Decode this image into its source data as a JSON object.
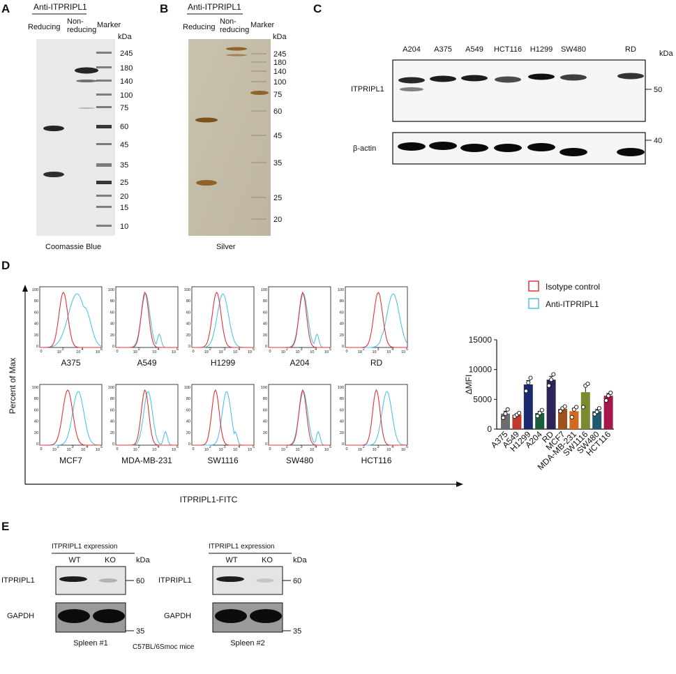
{
  "panels": {
    "A": "A",
    "B": "B",
    "C": "C",
    "D": "D",
    "E": "E"
  },
  "panelA": {
    "header": "Anti-ITPRIPL1",
    "lanes": [
      "Reducing",
      "Non-",
      "reducing",
      "Marker"
    ],
    "unit": "kDa",
    "markers": [
      "245",
      "180",
      "140",
      "100",
      "75",
      "60",
      "45",
      "35",
      "25",
      "20",
      "15",
      "10"
    ],
    "caption": "Coomassie Blue"
  },
  "panelB": {
    "header": "Anti-ITPRIPL1",
    "lanes": [
      "Reducing",
      "Non-",
      "reducing",
      "Marker"
    ],
    "unit": "kDa",
    "markers": [
      "245",
      "180",
      "140",
      "100",
      "75",
      "60",
      "45",
      "35",
      "25",
      "20"
    ],
    "caption": "Silver"
  },
  "panelC": {
    "cells": [
      "A204",
      "A375",
      "A549",
      "HCT116",
      "H1299",
      "SW480",
      "RD"
    ],
    "unit": "kDa",
    "rows": [
      "ITPRIPL1",
      "β-actin"
    ],
    "markers": [
      "50",
      "40"
    ]
  },
  "panelD": {
    "yaxis": "Percent of Max",
    "xaxis": "ITPRIPL1-FITC",
    "hist_ticks_y": [
      "100",
      "80",
      "60",
      "40",
      "20",
      "0"
    ],
    "hist_ticks_x": [
      "0",
      "10",
      "10",
      "10",
      "10",
      "10"
    ],
    "hist_ticks_x_exp": [
      "2",
      "3",
      "4",
      "5"
    ],
    "hist_ticks_x_exp6": [
      "2",
      "4",
      "6"
    ],
    "row1": [
      "A375",
      "A549",
      "H1299",
      "A204",
      "RD"
    ],
    "row2": [
      "MCF7",
      "MDA-MB-231",
      "SW1116",
      "SW480",
      "HCT116"
    ],
    "legend": [
      "Isotype control",
      "Anti-ITPRIPL1"
    ],
    "colors": {
      "isotype": "#e8303a",
      "anti": "#4fc3e8"
    }
  },
  "chart_data": {
    "type": "bar",
    "ylabel": "ΔMFI",
    "ylim": [
      0,
      15000
    ],
    "yticks": [
      "15000",
      "10000",
      "5000",
      "0"
    ],
    "categories": [
      "A375",
      "A549",
      "H1299",
      "A204",
      "RD",
      "MCF7",
      "MDA-MB-231",
      "SW1116",
      "SW480",
      "HCT116"
    ],
    "values": [
      2600,
      2400,
      7500,
      2700,
      8300,
      3400,
      3000,
      6200,
      3000,
      5600
    ],
    "points": [
      [
        1900,
        2600,
        3300
      ],
      [
        2100,
        2400,
        2700
      ],
      [
        6400,
        7800,
        8600
      ],
      [
        2200,
        2700,
        3200
      ],
      [
        7300,
        8300,
        9200
      ],
      [
        3000,
        3500,
        3800
      ],
      [
        2000,
        3300,
        3700
      ],
      [
        3700,
        7300,
        7600
      ],
      [
        2500,
        2900,
        3500
      ],
      [
        4800,
        5600,
        6100
      ]
    ],
    "colors": [
      "#6d6d6d",
      "#c0392b",
      "#1a2a6c",
      "#1b5e3b",
      "#2e2457",
      "#a0521c",
      "#d2691e",
      "#7a8a2e",
      "#1d5a6e",
      "#a8174a"
    ]
  },
  "panelE": {
    "header": "ITPRIPL1 expression",
    "lanes": [
      "WT",
      "KO"
    ],
    "unit": "kDa",
    "rows": [
      "ITPRIPL1",
      "GAPDH"
    ],
    "markers": [
      "60",
      "35"
    ],
    "captions": [
      "Spleen #1",
      "Spleen #2"
    ],
    "footer": "C57BL/6Smoc mice"
  }
}
